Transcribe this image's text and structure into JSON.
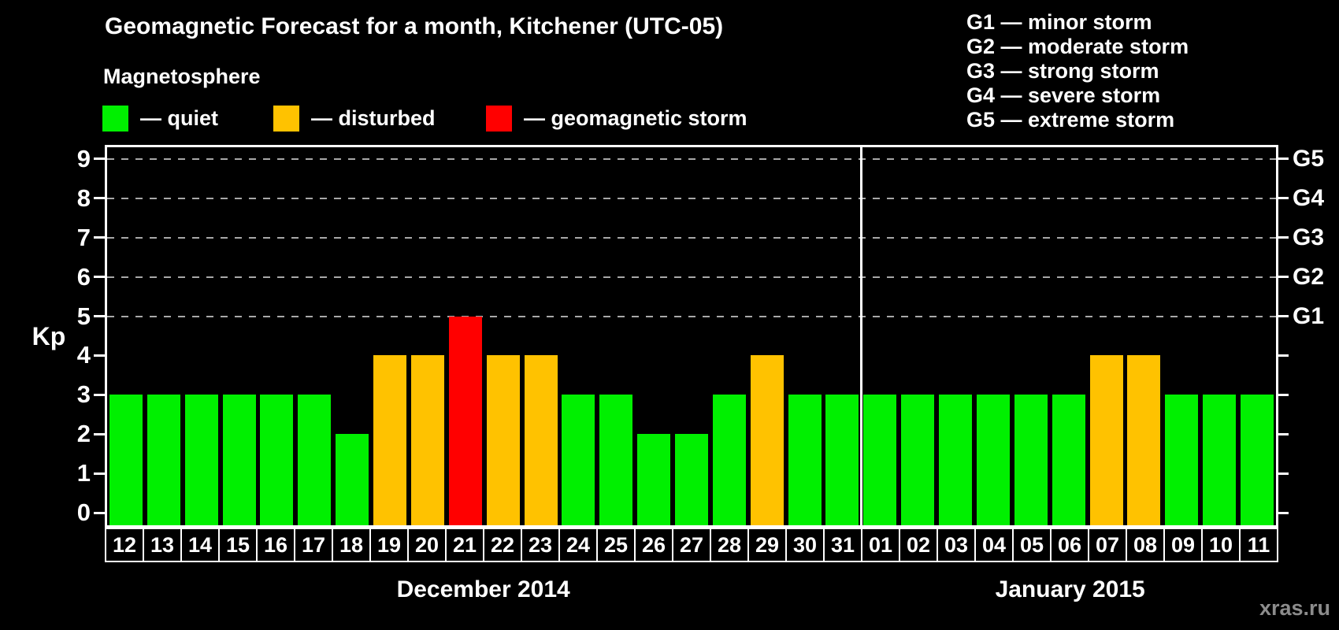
{
  "header": {
    "title": "Geomagnetic Forecast for a month, Kitchener (UTC-05)",
    "legend_heading": "Magnetosphere",
    "legend_items": [
      {
        "name": "quiet",
        "label": "— quiet",
        "color": "#00F000"
      },
      {
        "name": "disturbed",
        "label": "— disturbed",
        "color": "#FFC200"
      },
      {
        "name": "storm",
        "label": "— geomagnetic storm",
        "color": "#FF0000"
      }
    ],
    "storm_scale_legend": [
      {
        "code": "G1",
        "label": "G1 — minor storm"
      },
      {
        "code": "G2",
        "label": "G2 — moderate storm"
      },
      {
        "code": "G3",
        "label": "G3 — strong storm"
      },
      {
        "code": "G4",
        "label": "G4 — severe storm"
      },
      {
        "code": "G5",
        "label": "G5 — extreme storm"
      }
    ]
  },
  "axes": {
    "y_title": "Kp",
    "y_ticks": [
      "0",
      "1",
      "2",
      "3",
      "4",
      "5",
      "6",
      "7",
      "8",
      "9"
    ],
    "right_axis_labels": [
      {
        "label": "G1",
        "kp": 5
      },
      {
        "label": "G2",
        "kp": 6
      },
      {
        "label": "G3",
        "kp": 7
      },
      {
        "label": "G4",
        "kp": 8
      },
      {
        "label": "G5",
        "kp": 9
      }
    ]
  },
  "chart_data": {
    "type": "bar",
    "title": "Geomagnetic Forecast for a month, Kitchener (UTC-05)",
    "xlabel": "",
    "ylabel": "Kp",
    "ylim": [
      0,
      9
    ],
    "gridlines_at_kp": [
      5,
      6,
      7,
      8,
      9
    ],
    "legend_position": "top-left",
    "months": [
      {
        "label": "December 2014",
        "day_count": 20
      },
      {
        "label": "January 2015",
        "day_count": 11
      }
    ],
    "categories": [
      "12",
      "13",
      "14",
      "15",
      "16",
      "17",
      "18",
      "19",
      "20",
      "21",
      "22",
      "23",
      "24",
      "25",
      "26",
      "27",
      "28",
      "29",
      "30",
      "31",
      "01",
      "02",
      "03",
      "04",
      "05",
      "06",
      "07",
      "08",
      "09",
      "10",
      "11"
    ],
    "values": [
      3,
      3,
      3,
      3,
      3,
      3,
      2,
      4,
      4,
      5,
      4,
      4,
      3,
      3,
      2,
      2,
      3,
      4,
      3,
      3,
      3,
      3,
      3,
      3,
      3,
      3,
      4,
      4,
      3,
      3,
      3
    ],
    "statuses": [
      "quiet",
      "quiet",
      "quiet",
      "quiet",
      "quiet",
      "quiet",
      "quiet",
      "disturbed",
      "disturbed",
      "storm",
      "disturbed",
      "disturbed",
      "quiet",
      "quiet",
      "quiet",
      "quiet",
      "quiet",
      "disturbed",
      "quiet",
      "quiet",
      "quiet",
      "quiet",
      "quiet",
      "quiet",
      "quiet",
      "quiet",
      "disturbed",
      "disturbed",
      "quiet",
      "quiet",
      "quiet"
    ]
  },
  "watermark": "xras.ru"
}
